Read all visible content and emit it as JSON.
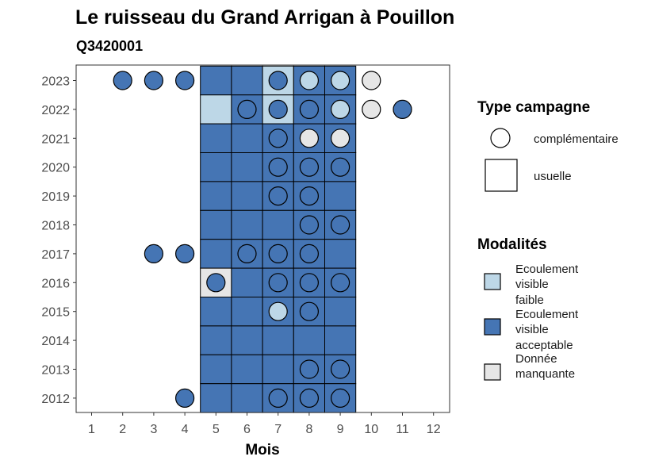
{
  "chart_data": {
    "type": "heatmap",
    "title": "Le ruisseau du Grand Arrigan à Pouillon",
    "subtitle": "Q3420001",
    "xlabel": "Mois",
    "ylabel": "",
    "x_ticks": [
      "1",
      "2",
      "3",
      "4",
      "5",
      "6",
      "7",
      "8",
      "9",
      "10",
      "11",
      "12"
    ],
    "y_ticks": [
      "2023",
      "2022",
      "2021",
      "2020",
      "2019",
      "2018",
      "2017",
      "2016",
      "2015",
      "2014",
      "2013",
      "2012"
    ],
    "colors": {
      "Ecoulement visible faible": "#bdd7e7",
      "Ecoulement visible acceptable": "#4575b4",
      "Donnée manquante": "#e6e6e6"
    },
    "legend_type": {
      "title": "Type campagne",
      "entries": [
        "complémentaire",
        "usuelle"
      ]
    },
    "legend_modalites": {
      "title": "Modalités",
      "entries": [
        {
          "key": "faible",
          "lines": [
            "Ecoulement",
            "visible",
            "faible"
          ],
          "color": "#bdd7e7"
        },
        {
          "key": "acceptable",
          "lines": [
            "Ecoulement",
            "visible",
            "acceptable"
          ],
          "color": "#4575b4"
        },
        {
          "key": "manquante",
          "lines": [
            "Donnée",
            "manquante"
          ],
          "color": "#e6e6e6"
        }
      ]
    },
    "usuelle": [
      {
        "year": 2023,
        "months": [
          5,
          6,
          7,
          8,
          9
        ],
        "modalites": [
          "acceptable",
          "acceptable",
          "faible",
          "acceptable",
          "acceptable"
        ]
      },
      {
        "year": 2022,
        "months": [
          5,
          6,
          7,
          8,
          9
        ],
        "modalites": [
          "faible",
          "acceptable",
          "faible",
          "acceptable",
          "acceptable"
        ]
      },
      {
        "year": 2021,
        "months": [
          5,
          6,
          7,
          8,
          9
        ],
        "modalites": [
          "acceptable",
          "acceptable",
          "acceptable",
          "acceptable",
          "acceptable"
        ]
      },
      {
        "year": 2020,
        "months": [
          5,
          6,
          7,
          8,
          9
        ],
        "modalites": [
          "acceptable",
          "acceptable",
          "acceptable",
          "acceptable",
          "acceptable"
        ]
      },
      {
        "year": 2019,
        "months": [
          5,
          6,
          7,
          8,
          9
        ],
        "modalites": [
          "acceptable",
          "acceptable",
          "acceptable",
          "acceptable",
          "acceptable"
        ]
      },
      {
        "year": 2018,
        "months": [
          5,
          6,
          7,
          8,
          9
        ],
        "modalites": [
          "acceptable",
          "acceptable",
          "acceptable",
          "acceptable",
          "acceptable"
        ]
      },
      {
        "year": 2017,
        "months": [
          5,
          6,
          7,
          8,
          9
        ],
        "modalites": [
          "acceptable",
          "acceptable",
          "acceptable",
          "acceptable",
          "acceptable"
        ]
      },
      {
        "year": 2016,
        "months": [
          5,
          6,
          7,
          8,
          9
        ],
        "modalites": [
          "manquante",
          "acceptable",
          "acceptable",
          "acceptable",
          "acceptable"
        ]
      },
      {
        "year": 2015,
        "months": [
          5,
          6,
          7,
          8,
          9
        ],
        "modalites": [
          "acceptable",
          "acceptable",
          "acceptable",
          "acceptable",
          "acceptable"
        ]
      },
      {
        "year": 2014,
        "months": [
          5,
          6,
          7,
          8,
          9
        ],
        "modalites": [
          "acceptable",
          "acceptable",
          "acceptable",
          "acceptable",
          "acceptable"
        ]
      },
      {
        "year": 2013,
        "months": [
          5,
          6,
          7,
          8,
          9
        ],
        "modalites": [
          "acceptable",
          "acceptable",
          "acceptable",
          "acceptable",
          "acceptable"
        ]
      },
      {
        "year": 2012,
        "months": [
          5,
          6,
          7,
          8,
          9
        ],
        "modalites": [
          "acceptable",
          "acceptable",
          "acceptable",
          "acceptable",
          "acceptable"
        ]
      }
    ],
    "complementaire": [
      {
        "year": 2023,
        "month": 2,
        "modalite": "acceptable"
      },
      {
        "year": 2023,
        "month": 3,
        "modalite": "acceptable"
      },
      {
        "year": 2023,
        "month": 4,
        "modalite": "acceptable"
      },
      {
        "year": 2023,
        "month": 7,
        "modalite": "acceptable"
      },
      {
        "year": 2023,
        "month": 8,
        "modalite": "faible"
      },
      {
        "year": 2023,
        "month": 9,
        "modalite": "faible"
      },
      {
        "year": 2023,
        "month": 10,
        "modalite": "manquante"
      },
      {
        "year": 2022,
        "month": 6,
        "modalite": "acceptable"
      },
      {
        "year": 2022,
        "month": 7,
        "modalite": "acceptable"
      },
      {
        "year": 2022,
        "month": 8,
        "modalite": "acceptable"
      },
      {
        "year": 2022,
        "month": 9,
        "modalite": "faible"
      },
      {
        "year": 2022,
        "month": 10,
        "modalite": "manquante"
      },
      {
        "year": 2022,
        "month": 11,
        "modalite": "acceptable"
      },
      {
        "year": 2021,
        "month": 7,
        "modalite": "acceptable"
      },
      {
        "year": 2021,
        "month": 8,
        "modalite": "manquante"
      },
      {
        "year": 2021,
        "month": 9,
        "modalite": "manquante"
      },
      {
        "year": 2020,
        "month": 7,
        "modalite": "acceptable"
      },
      {
        "year": 2020,
        "month": 8,
        "modalite": "acceptable"
      },
      {
        "year": 2020,
        "month": 9,
        "modalite": "acceptable"
      },
      {
        "year": 2019,
        "month": 7,
        "modalite": "acceptable"
      },
      {
        "year": 2019,
        "month": 8,
        "modalite": "acceptable"
      },
      {
        "year": 2018,
        "month": 8,
        "modalite": "acceptable"
      },
      {
        "year": 2018,
        "month": 9,
        "modalite": "acceptable"
      },
      {
        "year": 2017,
        "month": 3,
        "modalite": "acceptable"
      },
      {
        "year": 2017,
        "month": 4,
        "modalite": "acceptable"
      },
      {
        "year": 2017,
        "month": 6,
        "modalite": "acceptable"
      },
      {
        "year": 2017,
        "month": 7,
        "modalite": "acceptable"
      },
      {
        "year": 2017,
        "month": 8,
        "modalite": "acceptable"
      },
      {
        "year": 2016,
        "month": 5,
        "modalite": "acceptable"
      },
      {
        "year": 2016,
        "month": 7,
        "modalite": "acceptable"
      },
      {
        "year": 2016,
        "month": 8,
        "modalite": "acceptable"
      },
      {
        "year": 2016,
        "month": 9,
        "modalite": "acceptable"
      },
      {
        "year": 2015,
        "month": 7,
        "modalite": "faible"
      },
      {
        "year": 2015,
        "month": 8,
        "modalite": "acceptable"
      },
      {
        "year": 2013,
        "month": 8,
        "modalite": "acceptable"
      },
      {
        "year": 2013,
        "month": 9,
        "modalite": "acceptable"
      },
      {
        "year": 2012,
        "month": 4,
        "modalite": "acceptable"
      },
      {
        "year": 2012,
        "month": 7,
        "modalite": "acceptable"
      },
      {
        "year": 2012,
        "month": 8,
        "modalite": "acceptable"
      },
      {
        "year": 2012,
        "month": 9,
        "modalite": "acceptable"
      }
    ]
  }
}
